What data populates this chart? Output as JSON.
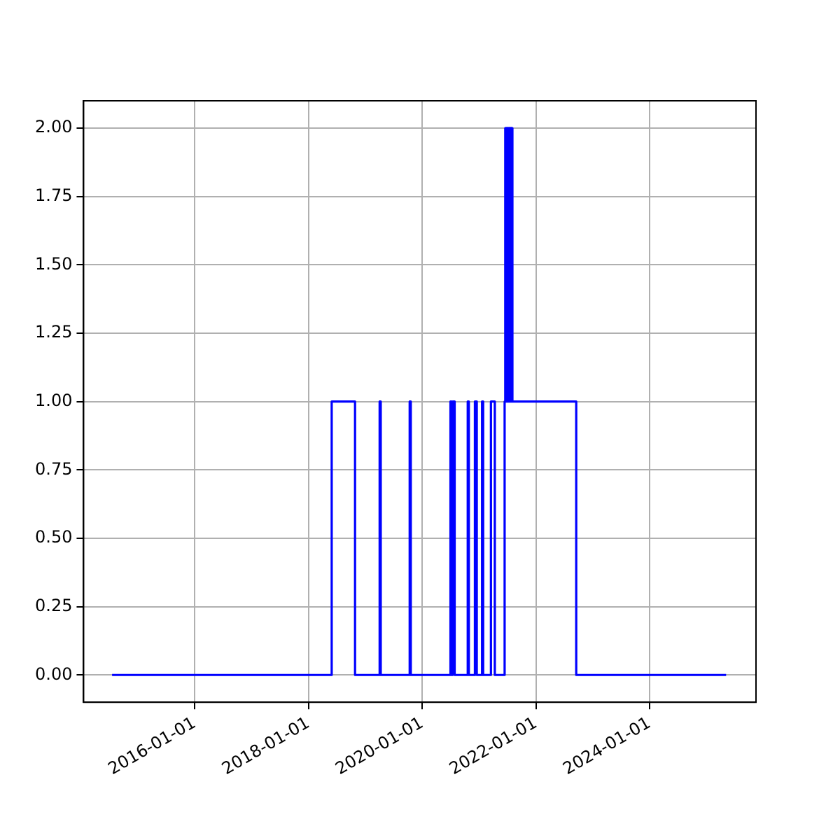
{
  "chart_data": {
    "type": "step",
    "x": [
      "2014-07-19",
      "2018-05-30",
      "2018-10-27",
      "2019-04-03",
      "2019-04-10",
      "2019-10-13",
      "2019-10-20",
      "2020-07-01",
      "2020-07-08",
      "2020-07-15",
      "2020-07-28",
      "2020-10-20",
      "2020-10-27",
      "2020-12-05",
      "2020-12-17",
      "2021-01-20",
      "2021-01-27",
      "2021-03-18",
      "2021-04-12",
      "2021-06-14",
      "2021-06-18",
      "2021-06-22",
      "2021-06-25",
      "2021-06-29",
      "2021-07-02",
      "2021-07-06",
      "2021-07-09",
      "2021-07-13",
      "2021-07-16",
      "2021-07-20",
      "2021-07-23",
      "2021-07-27",
      "2021-07-30",
      "2021-08-03",
      "2022-09-17",
      "2025-05-07"
    ],
    "series": [
      {
        "color": "#0000ff",
        "values": [
          0,
          1,
          0,
          1,
          0,
          1,
          0,
          1,
          0,
          1,
          0,
          1,
          0,
          1,
          0,
          1,
          0,
          1,
          0,
          1,
          2,
          1,
          2,
          1,
          2,
          1,
          2,
          1,
          2,
          1,
          2,
          1,
          2,
          1,
          0,
          0
        ]
      }
    ],
    "xlim": [
      "2014-01-17",
      "2025-11-15"
    ],
    "xticks": [
      "2016-01-01",
      "2018-01-01",
      "2020-01-01",
      "2022-01-01",
      "2024-01-01"
    ],
    "ylim": [
      -0.1,
      2.1
    ],
    "yticks": [
      {
        "value": 0,
        "label": "0.00"
      },
      {
        "value": 0.25,
        "label": "0.25"
      },
      {
        "value": 0.5,
        "label": "0.50"
      },
      {
        "value": 0.75,
        "label": "0.75"
      },
      {
        "value": 1,
        "label": "1.00"
      },
      {
        "value": 1.25,
        "label": "1.25"
      },
      {
        "value": 1.5,
        "label": "1.50"
      },
      {
        "value": 1.75,
        "label": "1.75"
      },
      {
        "value": 2,
        "label": "2.00"
      }
    ],
    "grid": true,
    "marker": "none",
    "line_style": "solid"
  }
}
